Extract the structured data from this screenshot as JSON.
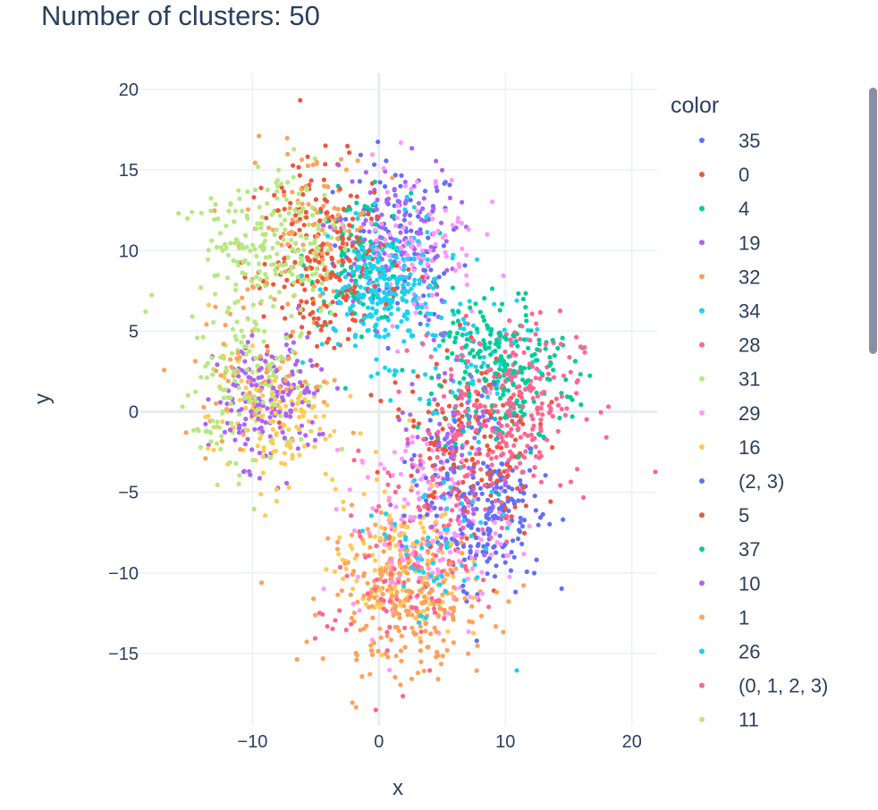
{
  "chart_data": {
    "type": "scatter",
    "title": "Number of clusters: 50",
    "xlabel": "x",
    "ylabel": "y",
    "xlim": [
      -19.5,
      22
    ],
    "ylim": [
      -19.5,
      21
    ],
    "xticks": [
      -10,
      0,
      10,
      20
    ],
    "yticks": [
      -15,
      -10,
      -5,
      0,
      5,
      10,
      15,
      20
    ],
    "xtick_labels": [
      "−10",
      "0",
      "10",
      "20"
    ],
    "ytick_labels": [
      "−15",
      "−10",
      "−5",
      "0",
      "5",
      "10",
      "15",
      "20"
    ],
    "grid": true,
    "legend": {
      "title": "color",
      "placement": "right",
      "scrollable": true
    },
    "series": [
      {
        "name": "35",
        "color": "#636efa",
        "clusters": [
          {
            "cx": 1.5,
            "cy": 10.5,
            "sx": 2.5,
            "sy": 2.5,
            "n": 110
          },
          {
            "cx": 9.0,
            "cy": -6.0,
            "sx": 2.0,
            "sy": 2.5,
            "n": 140
          }
        ]
      },
      {
        "name": "0",
        "color": "#EF553B",
        "clusters": [
          {
            "cx": -5.0,
            "cy": 9.5,
            "sx": 2.8,
            "sy": 3.0,
            "n": 150
          },
          {
            "cx": 6.5,
            "cy": -1.5,
            "sx": 2.5,
            "sy": 2.5,
            "n": 80
          }
        ]
      },
      {
        "name": "4",
        "color": "#00cc96",
        "clusters": [
          {
            "cx": -1.5,
            "cy": 9.5,
            "sx": 2.0,
            "sy": 2.0,
            "n": 110
          },
          {
            "cx": 10.0,
            "cy": 2.0,
            "sx": 2.8,
            "sy": 2.5,
            "n": 140
          }
        ]
      },
      {
        "name": "19",
        "color": "#ab63fa",
        "clusters": [
          {
            "cx": 1.0,
            "cy": 10.5,
            "sx": 2.5,
            "sy": 2.5,
            "n": 120
          },
          {
            "cx": -9.0,
            "cy": 0.5,
            "sx": 2.0,
            "sy": 2.0,
            "n": 100
          }
        ]
      },
      {
        "name": "32",
        "color": "#FFA15A",
        "clusters": [
          {
            "cx": -5.5,
            "cy": 11.5,
            "sx": 2.5,
            "sy": 2.5,
            "n": 90
          },
          {
            "cx": 2.0,
            "cy": -11.0,
            "sx": 3.0,
            "sy": 2.5,
            "n": 140
          }
        ]
      },
      {
        "name": "34",
        "color": "#19d3f3",
        "clusters": [
          {
            "cx": 0.5,
            "cy": 7.5,
            "sx": 2.0,
            "sy": 2.0,
            "n": 150
          },
          {
            "cx": 7.0,
            "cy": 3.0,
            "sx": 2.5,
            "sy": 2.5,
            "n": 70
          }
        ]
      },
      {
        "name": "28",
        "color": "#FF6692",
        "clusters": [
          {
            "cx": 11.0,
            "cy": 1.0,
            "sx": 2.5,
            "sy": 2.5,
            "n": 150
          },
          {
            "cx": 4.5,
            "cy": -7.0,
            "sx": 2.5,
            "sy": 2.5,
            "n": 80
          }
        ]
      },
      {
        "name": "31",
        "color": "#B6E880",
        "clusters": [
          {
            "cx": -8.0,
            "cy": 11.0,
            "sx": 3.0,
            "sy": 2.5,
            "n": 130
          },
          {
            "cx": -10.0,
            "cy": 2.0,
            "sx": 2.5,
            "sy": 2.0,
            "n": 90
          }
        ]
      },
      {
        "name": "29",
        "color": "#FF97FF",
        "clusters": [
          {
            "cx": 3.0,
            "cy": 10.5,
            "sx": 2.5,
            "sy": 2.5,
            "n": 90
          },
          {
            "cx": 4.0,
            "cy": -7.0,
            "sx": 3.0,
            "sy": 3.0,
            "n": 170
          }
        ]
      },
      {
        "name": "16",
        "color": "#FECB52",
        "clusters": [
          {
            "cx": -8.5,
            "cy": -0.5,
            "sx": 2.5,
            "sy": 2.0,
            "n": 130
          },
          {
            "cx": 1.5,
            "cy": -9.5,
            "sx": 2.5,
            "sy": 2.5,
            "n": 120
          }
        ]
      },
      {
        "name": "(2, 3)",
        "color": "#636efa",
        "clusters": [
          {
            "cx": 7.5,
            "cy": -5.0,
            "sx": 2.5,
            "sy": 3.0,
            "n": 90
          }
        ]
      },
      {
        "name": "5",
        "color": "#EF553B",
        "clusters": [
          {
            "cx": -3.0,
            "cy": 9.0,
            "sx": 2.5,
            "sy": 2.5,
            "n": 90
          },
          {
            "cx": 7.5,
            "cy": -2.0,
            "sx": 2.5,
            "sy": 3.0,
            "n": 90
          }
        ]
      },
      {
        "name": "37",
        "color": "#00cc96",
        "clusters": [
          {
            "cx": 9.5,
            "cy": 3.5,
            "sx": 2.5,
            "sy": 2.0,
            "n": 100
          }
        ]
      },
      {
        "name": "10",
        "color": "#ab63fa",
        "clusters": [
          {
            "cx": -8.0,
            "cy": 1.0,
            "sx": 2.0,
            "sy": 2.0,
            "n": 80
          },
          {
            "cx": 6.0,
            "cy": -3.0,
            "sx": 2.5,
            "sy": 3.0,
            "n": 80
          }
        ]
      },
      {
        "name": "1",
        "color": "#FFA15A",
        "clusters": [
          {
            "cx": 2.5,
            "cy": -12.0,
            "sx": 3.0,
            "sy": 2.0,
            "n": 140
          },
          {
            "cx": -10.0,
            "cy": 3.0,
            "sx": 2.5,
            "sy": 2.5,
            "n": 70
          }
        ]
      },
      {
        "name": "26",
        "color": "#19d3f3",
        "clusters": [
          {
            "cx": 0.0,
            "cy": 7.0,
            "sx": 2.5,
            "sy": 2.0,
            "n": 90
          },
          {
            "cx": 4.5,
            "cy": -8.5,
            "sx": 2.5,
            "sy": 2.5,
            "n": 60
          }
        ]
      },
      {
        "name": "(0, 1, 2, 3)",
        "color": "#FF6692",
        "clusters": [
          {
            "cx": 9.0,
            "cy": -1.0,
            "sx": 3.0,
            "sy": 3.0,
            "n": 110
          },
          {
            "cx": 1.0,
            "cy": -11.5,
            "sx": 3.0,
            "sy": 2.5,
            "n": 60
          }
        ]
      },
      {
        "name": "11",
        "color": "#B6E880",
        "clusters": [
          {
            "cx": -9.5,
            "cy": 9.0,
            "sx": 2.5,
            "sy": 2.5,
            "n": 90
          },
          {
            "cx": -11.0,
            "cy": 0.0,
            "sx": 2.0,
            "sy": 2.5,
            "n": 50
          }
        ]
      }
    ]
  }
}
